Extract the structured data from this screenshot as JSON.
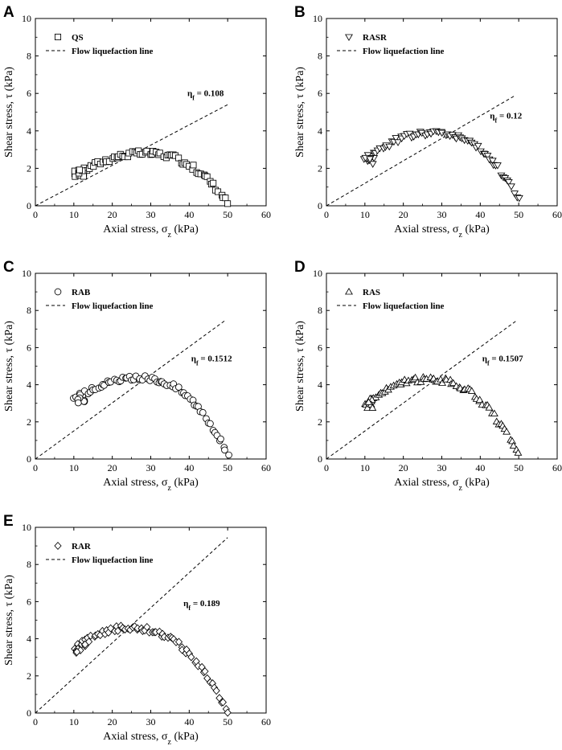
{
  "figure": {
    "colors": {
      "ink": "#000000",
      "marker_fill": "#ffffff",
      "background": "#ffffff"
    },
    "x_ticks": [
      "0",
      "10",
      "20",
      "30",
      "40",
      "50",
      "60"
    ],
    "y_ticks": [
      "0",
      "2",
      "4",
      "6",
      "8",
      "10"
    ]
  },
  "chart_data": [
    {
      "panel": "A",
      "type": "scatter",
      "xlabel": "Axial stress, σ",
      "xlabel_sub": "z",
      "xlabel_unit": " (kPa)",
      "ylabel": "Shear stress, τ (kPa)",
      "xlim": [
        0,
        60
      ],
      "ylim": [
        0,
        10
      ],
      "legend": {
        "marker": "square",
        "label": "QS",
        "line_label": "Flow liquefaction line"
      },
      "flow_line": {
        "slope": 0.108,
        "x_end": 50
      },
      "annotation": {
        "symbol": "η",
        "sub": "f",
        "value": " = 0.108",
        "x": 39.5,
        "y": 5.85
      },
      "curve": {
        "x_start": 10,
        "y_start": 1.55,
        "x_peak": 28,
        "y_peak": 2.8,
        "x_end": 50,
        "y_end": 0.15
      }
    },
    {
      "panel": "B",
      "type": "scatter",
      "xlabel": "Axial stress, σ",
      "xlabel_sub": "z",
      "xlabel_unit": " (kPa)",
      "ylabel": "Shear stress, τ (kPa)",
      "xlim": [
        0,
        60
      ],
      "ylim": [
        0,
        10
      ],
      "legend": {
        "marker": "triangle-down",
        "label": "RASR",
        "line_label": "Flow liquefaction line"
      },
      "flow_line": {
        "slope": 0.12,
        "x_end": 49
      },
      "annotation": {
        "symbol": "η",
        "sub": "f",
        "value": " = 0.12",
        "x": 42.5,
        "y": 4.65
      },
      "curve": {
        "x_start": 10,
        "y_start": 2.4,
        "x_peak": 27,
        "y_peak": 3.9,
        "x_end": 50,
        "y_end": 0.3
      }
    },
    {
      "panel": "C",
      "type": "scatter",
      "xlabel": "Axial stress, σ",
      "xlabel_sub": "z",
      "xlabel_unit": " (kPa)",
      "ylabel": "Shear stress, τ (kPa)",
      "xlim": [
        0,
        60
      ],
      "ylim": [
        0,
        10
      ],
      "legend": {
        "marker": "circle",
        "label": "RAB",
        "line_label": "Flow liquefaction line"
      },
      "flow_line": {
        "slope": 0.1512,
        "x_end": 49.5
      },
      "annotation": {
        "symbol": "η",
        "sub": "f",
        "value": " = 0.1512",
        "x": 40.5,
        "y": 5.25
      },
      "curve": {
        "x_start": 10,
        "y_start": 3.2,
        "x_peak": 27,
        "y_peak": 4.35,
        "x_end": 50,
        "y_end": 0.25
      }
    },
    {
      "panel": "D",
      "type": "scatter",
      "xlabel": "Axial stress, σ",
      "xlabel_sub": "z",
      "xlabel_unit": " (kPa)",
      "ylabel": "Shear stress, τ (kPa)",
      "xlim": [
        0,
        60
      ],
      "ylim": [
        0,
        10
      ],
      "legend": {
        "marker": "triangle-up",
        "label": "RAS",
        "line_label": "Flow liquefaction line"
      },
      "flow_line": {
        "slope": 0.1507,
        "x_end": 49.5
      },
      "annotation": {
        "symbol": "η",
        "sub": "f",
        "value": " = 0.1507",
        "x": 40.5,
        "y": 5.25
      },
      "curve": {
        "x_start": 10,
        "y_start": 2.9,
        "x_peak": 26,
        "y_peak": 4.3,
        "x_end": 50,
        "y_end": 0.15
      }
    },
    {
      "panel": "E",
      "type": "scatter",
      "xlabel": "Axial stress, σ",
      "xlabel_sub": "z",
      "xlabel_unit": " (kPa)",
      "ylabel": "Shear stress, τ (kPa)",
      "xlim": [
        0,
        60
      ],
      "ylim": [
        0,
        10
      ],
      "legend": {
        "marker": "diamond",
        "label": "RAR",
        "line_label": "Flow liquefaction line"
      },
      "flow_line": {
        "slope": 0.189,
        "x_end": 50
      },
      "annotation": {
        "symbol": "η",
        "sub": "f",
        "value": " = 0.189",
        "x": 38.5,
        "y": 5.75
      },
      "curve": {
        "x_start": 10,
        "y_start": 3.4,
        "x_peak": 24,
        "y_peak": 4.6,
        "x_end": 50,
        "y_end": 0.05
      }
    }
  ]
}
